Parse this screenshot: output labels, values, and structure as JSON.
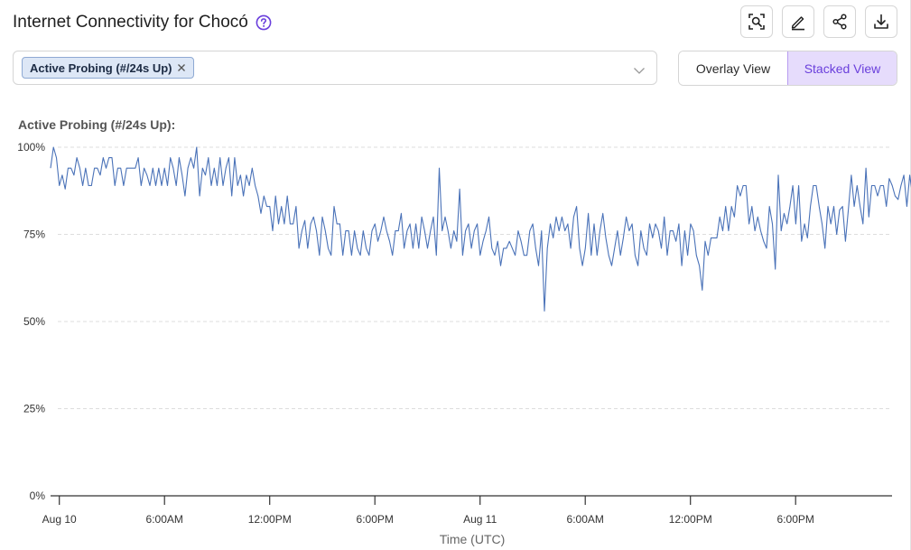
{
  "header": {
    "title": "Internet Connectivity for Chocó"
  },
  "toolbar": {
    "buttons": [
      {
        "name": "zoom-button",
        "icon": "zoom-search-icon"
      },
      {
        "name": "edit-button",
        "icon": "pencil-icon"
      },
      {
        "name": "share-button",
        "icon": "share-icon"
      },
      {
        "name": "download-button",
        "icon": "download-icon"
      }
    ]
  },
  "filter": {
    "selected_chip": "Active Probing (#/24s Up)"
  },
  "view_toggle": {
    "overlay_label": "Overlay View",
    "stacked_label": "Stacked View",
    "active": "stacked"
  },
  "colors": {
    "series": "#4a72b8",
    "accent": "#6a3fdc"
  },
  "chart_data": {
    "type": "line",
    "title": "Active Probing (#/24s Up):",
    "xlabel": "Time (UTC)",
    "ylabel": "",
    "ylim": [
      0,
      100
    ],
    "y_ticks": [
      "0%",
      "25%",
      "50%",
      "75%",
      "100%"
    ],
    "xlim_hours": [
      -0.5,
      47.5
    ],
    "x_ticks": [
      {
        "label": "Aug 10",
        "hour": 0
      },
      {
        "label": "6:00AM",
        "hour": 6
      },
      {
        "label": "12:00PM",
        "hour": 12
      },
      {
        "label": "6:00PM",
        "hour": 18
      },
      {
        "label": "Aug 11",
        "hour": 24
      },
      {
        "label": "6:00AM",
        "hour": 30
      },
      {
        "label": "12:00PM",
        "hour": 36
      },
      {
        "label": "6:00PM",
        "hour": 42
      }
    ],
    "grid": true,
    "legend": "none",
    "series": [
      {
        "name": "Active Probing (#/24s Up)",
        "x_start_hour": -0.5,
        "x_step_hour": 0.1667,
        "values": [
          94,
          100,
          97,
          89,
          92,
          88,
          94,
          94,
          92,
          97,
          94,
          89,
          94,
          89,
          89,
          94,
          94,
          92,
          97,
          94,
          97,
          97,
          89,
          94,
          94,
          89,
          94,
          94,
          94,
          94,
          97,
          89,
          94,
          92,
          89,
          94,
          89,
          94,
          89,
          94,
          89,
          97,
          94,
          89,
          97,
          92,
          86,
          94,
          97,
          94,
          100,
          86,
          94,
          92,
          97,
          89,
          94,
          89,
          97,
          89,
          94,
          97,
          86,
          97,
          89,
          92,
          86,
          92,
          89,
          94,
          89,
          86,
          81,
          86,
          83,
          83,
          76,
          86,
          78,
          83,
          78,
          86,
          78,
          78,
          83,
          71,
          76,
          79,
          71,
          78,
          80,
          76,
          69,
          80,
          76,
          71,
          69,
          83,
          78,
          78,
          69,
          76,
          76,
          69,
          76,
          71,
          69,
          76,
          71,
          69,
          76,
          78,
          73,
          76,
          80,
          76,
          73,
          69,
          76,
          76,
          81,
          71,
          76,
          78,
          71,
          78,
          71,
          80,
          76,
          71,
          76,
          80,
          69,
          94,
          76,
          80,
          76,
          71,
          76,
          73,
          88,
          69,
          76,
          78,
          71,
          76,
          78,
          69,
          73,
          76,
          80,
          71,
          69,
          73,
          66,
          71,
          71,
          73,
          71,
          69,
          76,
          73,
          69,
          69,
          76,
          78,
          71,
          66,
          76,
          53,
          71,
          78,
          74,
          80,
          76,
          80,
          76,
          78,
          71,
          80,
          83,
          71,
          66,
          71,
          81,
          69,
          78,
          69,
          76,
          81,
          74,
          69,
          66,
          71,
          76,
          69,
          74,
          80,
          76,
          78,
          69,
          66,
          76,
          71,
          69,
          78,
          74,
          78,
          76,
          71,
          80,
          69,
          76,
          76,
          73,
          78,
          66,
          76,
          69,
          78,
          76,
          69,
          66,
          59,
          73,
          69,
          74,
          74,
          74,
          80,
          76,
          83,
          76,
          83,
          80,
          89,
          86,
          89,
          89,
          78,
          83,
          76,
          80,
          76,
          73,
          71,
          83,
          78,
          65,
          92,
          76,
          81,
          78,
          83,
          89,
          78,
          89,
          73,
          78,
          74,
          83,
          89,
          89,
          83,
          78,
          71,
          83,
          78,
          83,
          75,
          82,
          83,
          73,
          82,
          92,
          83,
          89,
          83,
          78,
          94,
          80,
          89,
          89,
          86,
          89,
          89,
          83,
          91,
          89,
          86,
          85,
          89,
          92,
          83,
          92,
          86,
          89,
          86,
          83,
          91,
          84,
          89,
          89,
          89,
          82,
          91,
          83,
          83,
          77
        ]
      }
    ]
  }
}
